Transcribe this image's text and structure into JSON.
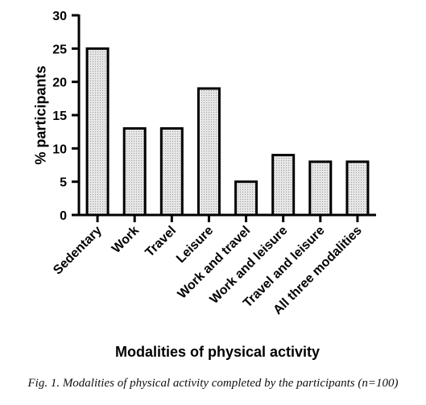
{
  "chart_data": {
    "type": "bar",
    "categories": [
      "Sedentary",
      "Work",
      "Travel",
      "Leisure",
      "Work and travel",
      "Work and leisure",
      "Travel and leisure",
      "All three modalities"
    ],
    "values": [
      25,
      13,
      13,
      19,
      5,
      9,
      8,
      8
    ],
    "xlabel": "Modalities of physical activity",
    "ylabel": "% participants",
    "ylim": [
      0,
      30
    ],
    "yticks": [
      0,
      5,
      10,
      15,
      20,
      25,
      30
    ],
    "grid": false,
    "bar_fill": "#e6e6e6",
    "bar_stroke": "#000000"
  },
  "caption": "Fig. 1. Modalities of physical activity completed by the participants (n=100)"
}
